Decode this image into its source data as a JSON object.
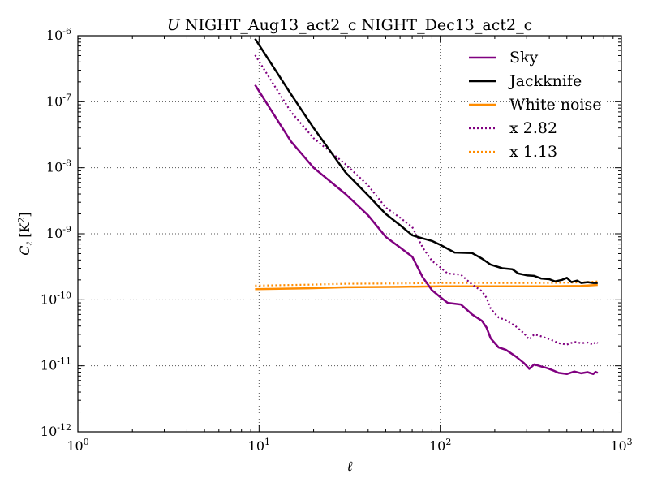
{
  "chart_data": {
    "type": "line",
    "title": {
      "italic": "U",
      "text": " NIGHT_Aug13_act2_c NIGHT_Dec13_act2_c"
    },
    "xlabel": "ℓ",
    "ylabel": {
      "base": "C",
      "sub": "ℓ",
      "unit_open": " [K",
      "unit_sup": "2",
      "unit_close": "]"
    },
    "xscale": "log",
    "yscale": "log",
    "xlim": [
      1,
      1000
    ],
    "ylim": [
      1e-12,
      1e-06
    ],
    "grid": true,
    "legend_position": "top-right",
    "x_ticks": [
      {
        "value": 1,
        "base": "10",
        "exp": "0"
      },
      {
        "value": 10,
        "base": "10",
        "exp": "1"
      },
      {
        "value": 100,
        "base": "10",
        "exp": "2"
      },
      {
        "value": 1000,
        "base": "10",
        "exp": "3"
      }
    ],
    "y_ticks": [
      {
        "value": 1e-12,
        "base": "10",
        "exp": "-12"
      },
      {
        "value": 1e-11,
        "base": "10",
        "exp": "-11"
      },
      {
        "value": 1e-10,
        "base": "10",
        "exp": "-10"
      },
      {
        "value": 1e-09,
        "base": "10",
        "exp": "-9"
      },
      {
        "value": 1e-08,
        "base": "10",
        "exp": "-8"
      },
      {
        "value": 1e-07,
        "base": "10",
        "exp": "-7"
      },
      {
        "value": 1e-06,
        "base": "10",
        "exp": "-6"
      }
    ],
    "series": [
      {
        "name": "Sky",
        "color": "#800080",
        "style": "solid",
        "points": [
          [
            9.5,
            1.8e-07
          ],
          [
            15,
            2.5e-08
          ],
          [
            20,
            1e-08
          ],
          [
            30,
            4e-09
          ],
          [
            40,
            1.9e-09
          ],
          [
            50,
            9e-10
          ],
          [
            60,
            6.2e-10
          ],
          [
            70,
            4.5e-10
          ],
          [
            80,
            2.2e-10
          ],
          [
            90,
            1.4e-10
          ],
          [
            100,
            1.1e-10
          ],
          [
            110,
            9e-11
          ],
          [
            130,
            8.5e-11
          ],
          [
            150,
            6e-11
          ],
          [
            170,
            4.8e-11
          ],
          [
            180,
            3.8e-11
          ],
          [
            190,
            2.6e-11
          ],
          [
            210,
            1.9e-11
          ],
          [
            230,
            1.75e-11
          ],
          [
            260,
            1.4e-11
          ],
          [
            290,
            1.1e-11
          ],
          [
            310,
            9e-12
          ],
          [
            330,
            1.05e-11
          ],
          [
            360,
            9.8e-12
          ],
          [
            390,
            9.2e-12
          ],
          [
            420,
            8.5e-12
          ],
          [
            450,
            7.8e-12
          ],
          [
            500,
            7.5e-12
          ],
          [
            550,
            8.2e-12
          ],
          [
            600,
            7.7e-12
          ],
          [
            650,
            8e-12
          ],
          [
            700,
            7.5e-12
          ],
          [
            720,
            8.1e-12
          ],
          [
            740,
            7.8e-12
          ]
        ]
      },
      {
        "name": "Jackknife",
        "color": "#000000",
        "style": "solid",
        "points": [
          [
            9.5,
            9e-07
          ],
          [
            15,
            1.3e-07
          ],
          [
            20,
            4e-08
          ],
          [
            30,
            8.5e-09
          ],
          [
            40,
            3.8e-09
          ],
          [
            50,
            2e-09
          ],
          [
            60,
            1.35e-09
          ],
          [
            70,
            9.5e-10
          ],
          [
            80,
            8.5e-10
          ],
          [
            90,
            7.8e-10
          ],
          [
            100,
            6.8e-10
          ],
          [
            120,
            5.2e-10
          ],
          [
            150,
            5.1e-10
          ],
          [
            170,
            4.2e-10
          ],
          [
            190,
            3.4e-10
          ],
          [
            220,
            3e-10
          ],
          [
            250,
            2.9e-10
          ],
          [
            270,
            2.5e-10
          ],
          [
            300,
            2.35e-10
          ],
          [
            330,
            2.3e-10
          ],
          [
            360,
            2.1e-10
          ],
          [
            400,
            2.05e-10
          ],
          [
            430,
            1.9e-10
          ],
          [
            470,
            2e-10
          ],
          [
            500,
            2.15e-10
          ],
          [
            530,
            1.85e-10
          ],
          [
            570,
            1.95e-10
          ],
          [
            600,
            1.8e-10
          ],
          [
            650,
            1.85e-10
          ],
          [
            700,
            1.8e-10
          ],
          [
            740,
            1.8e-10
          ]
        ]
      },
      {
        "name": "White noise",
        "color": "#ff8c00",
        "style": "solid",
        "points": [
          [
            9.5,
            1.45e-10
          ],
          [
            20,
            1.5e-10
          ],
          [
            30,
            1.55e-10
          ],
          [
            60,
            1.57e-10
          ],
          [
            100,
            1.6e-10
          ],
          [
            200,
            1.6e-10
          ],
          [
            400,
            1.6e-10
          ],
          [
            600,
            1.62e-10
          ],
          [
            740,
            1.68e-10
          ]
        ]
      },
      {
        "name": "x 2.82",
        "color": "#800080",
        "style": "dotted",
        "points": [
          [
            9.5,
            5.1e-07
          ],
          [
            15,
            7e-08
          ],
          [
            20,
            2.8e-08
          ],
          [
            30,
            1.13e-08
          ],
          [
            40,
            5.4e-09
          ],
          [
            50,
            2.5e-09
          ],
          [
            60,
            1.75e-09
          ],
          [
            70,
            1.27e-09
          ],
          [
            80,
            6.2e-10
          ],
          [
            90,
            3.9e-10
          ],
          [
            100,
            3.1e-10
          ],
          [
            110,
            2.5e-10
          ],
          [
            130,
            2.4e-10
          ],
          [
            150,
            1.7e-10
          ],
          [
            170,
            1.35e-10
          ],
          [
            180,
            1.07e-10
          ],
          [
            190,
            7.3e-11
          ],
          [
            210,
            5.4e-11
          ],
          [
            230,
            4.9e-11
          ],
          [
            260,
            4e-11
          ],
          [
            290,
            3.1e-11
          ],
          [
            310,
            2.5e-11
          ],
          [
            330,
            3e-11
          ],
          [
            360,
            2.8e-11
          ],
          [
            390,
            2.6e-11
          ],
          [
            420,
            2.4e-11
          ],
          [
            450,
            2.2e-11
          ],
          [
            500,
            2.1e-11
          ],
          [
            550,
            2.3e-11
          ],
          [
            600,
            2.2e-11
          ],
          [
            650,
            2.25e-11
          ],
          [
            700,
            2.1e-11
          ],
          [
            720,
            2.3e-11
          ],
          [
            740,
            2.2e-11
          ]
        ]
      },
      {
        "name": "x 1.13",
        "color": "#ff8c00",
        "style": "dotted",
        "points": [
          [
            9.5,
            1.64e-10
          ],
          [
            20,
            1.7e-10
          ],
          [
            30,
            1.75e-10
          ],
          [
            60,
            1.77e-10
          ],
          [
            100,
            1.8e-10
          ],
          [
            200,
            1.8e-10
          ],
          [
            400,
            1.8e-10
          ],
          [
            600,
            1.83e-10
          ],
          [
            740,
            1.9e-10
          ]
        ]
      }
    ]
  }
}
